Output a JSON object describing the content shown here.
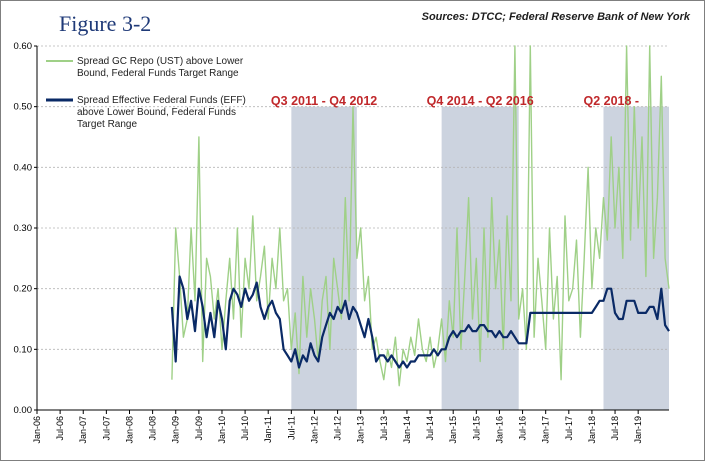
{
  "figure_title": "Figure 3-2",
  "sources": "Sources: DTCC; Federal Reserve Bank of New York",
  "colors": {
    "gc_repo": "#9fd087",
    "eff": "#0a2a66",
    "shade": "#ccd3df",
    "period_label": "#c0282b",
    "grid": "#b5b5b5"
  },
  "chart_data": {
    "type": "line",
    "title": "",
    "xlabel": "",
    "ylabel": "",
    "ylim": [
      0,
      0.6
    ],
    "yticks": [
      "0.00",
      "0.10",
      "0.20",
      "0.30",
      "0.40",
      "0.50",
      "0.60"
    ],
    "xlim": [
      "2006-01",
      "2019-09"
    ],
    "xticks": [
      "Jan-06",
      "Jul-06",
      "Jan-07",
      "Jul-07",
      "Jan-08",
      "Jul-08",
      "Jan-09",
      "Jul-09",
      "Jan-10",
      "Jul-10",
      "Jan-11",
      "Jul-11",
      "Jan-12",
      "Jul-12",
      "Jan-13",
      "Jul-13",
      "Jan-14",
      "Jul-14",
      "Jan-15",
      "Jul-15",
      "Jan-16",
      "Jul-16",
      "Jan-17",
      "Jul-17",
      "Jan-18",
      "Jul-18",
      "Jan-19"
    ],
    "grid": true,
    "legend_position": "top-left",
    "shaded_periods": [
      {
        "label": "Q3 2011 - Q4 2012",
        "start": "2011-07",
        "end": "2012-12"
      },
      {
        "label": "Q4 2014 - Q2 2016",
        "start": "2014-10",
        "end": "2016-06"
      },
      {
        "label": "Q2 2018 -",
        "start": "2018-04",
        "end": "2019-09"
      }
    ],
    "series": [
      {
        "name": "Spread GC Repo (UST) above Lower Bound, Federal Funds Target Range",
        "x": [
          "2008-12",
          "2009-01",
          "2009-02",
          "2009-03",
          "2009-04",
          "2009-05",
          "2009-06",
          "2009-07",
          "2009-08",
          "2009-09",
          "2009-10",
          "2009-11",
          "2009-12",
          "2010-01",
          "2010-02",
          "2010-03",
          "2010-04",
          "2010-05",
          "2010-06",
          "2010-07",
          "2010-08",
          "2010-09",
          "2010-10",
          "2010-11",
          "2010-12",
          "2011-01",
          "2011-02",
          "2011-03",
          "2011-04",
          "2011-05",
          "2011-06",
          "2011-07",
          "2011-08",
          "2011-09",
          "2011-10",
          "2011-11",
          "2011-12",
          "2012-01",
          "2012-02",
          "2012-03",
          "2012-04",
          "2012-05",
          "2012-06",
          "2012-07",
          "2012-08",
          "2012-09",
          "2012-10",
          "2012-11",
          "2012-12",
          "2013-01",
          "2013-02",
          "2013-03",
          "2013-04",
          "2013-05",
          "2013-06",
          "2013-07",
          "2013-08",
          "2013-09",
          "2013-10",
          "2013-11",
          "2013-12",
          "2014-01",
          "2014-02",
          "2014-03",
          "2014-04",
          "2014-05",
          "2014-06",
          "2014-07",
          "2014-08",
          "2014-09",
          "2014-10",
          "2014-11",
          "2014-12",
          "2015-01",
          "2015-02",
          "2015-03",
          "2015-04",
          "2015-05",
          "2015-06",
          "2015-07",
          "2015-08",
          "2015-09",
          "2015-10",
          "2015-11",
          "2015-12",
          "2016-01",
          "2016-02",
          "2016-03",
          "2016-04",
          "2016-05",
          "2016-06",
          "2016-07",
          "2016-08",
          "2016-09",
          "2016-10",
          "2016-11",
          "2016-12",
          "2017-01",
          "2017-02",
          "2017-03",
          "2017-04",
          "2017-05",
          "2017-06",
          "2017-07",
          "2017-08",
          "2017-09",
          "2017-10",
          "2017-11",
          "2017-12",
          "2018-01",
          "2018-02",
          "2018-03",
          "2018-04",
          "2018-05",
          "2018-06",
          "2018-07",
          "2018-08",
          "2018-09",
          "2018-10",
          "2018-11",
          "2018-12",
          "2019-01",
          "2019-02",
          "2019-03",
          "2019-04",
          "2019-05",
          "2019-06",
          "2019-07",
          "2019-08",
          "2019-09"
        ],
        "values": [
          0.05,
          0.3,
          0.22,
          0.12,
          0.15,
          0.3,
          0.18,
          0.45,
          0.08,
          0.25,
          0.22,
          0.15,
          0.2,
          0.1,
          0.18,
          0.25,
          0.15,
          0.3,
          0.12,
          0.25,
          0.2,
          0.32,
          0.18,
          0.22,
          0.27,
          0.15,
          0.25,
          0.2,
          0.3,
          0.18,
          0.2,
          0.1,
          0.16,
          0.06,
          0.22,
          0.12,
          0.2,
          0.15,
          0.08,
          0.18,
          0.22,
          0.1,
          0.25,
          0.2,
          0.15,
          0.35,
          0.18,
          0.5,
          0.25,
          0.3,
          0.18,
          0.22,
          0.1,
          0.12,
          0.08,
          0.05,
          0.1,
          0.07,
          0.12,
          0.04,
          0.1,
          0.08,
          0.12,
          0.09,
          0.15,
          0.1,
          0.08,
          0.12,
          0.07,
          0.1,
          0.15,
          0.08,
          0.18,
          0.12,
          0.3,
          0.1,
          0.22,
          0.35,
          0.15,
          0.25,
          0.08,
          0.3,
          0.12,
          0.35,
          0.2,
          0.28,
          0.1,
          0.32,
          0.18,
          0.6,
          0.15,
          0.2,
          0.1,
          0.6,
          0.12,
          0.25,
          0.18,
          0.1,
          0.3,
          0.15,
          0.22,
          0.05,
          0.32,
          0.18,
          0.2,
          0.28,
          0.12,
          0.25,
          0.4,
          0.2,
          0.3,
          0.25,
          0.35,
          0.28,
          0.45,
          0.3,
          0.4,
          0.25,
          0.6,
          0.28,
          0.5,
          0.3,
          0.45,
          0.22,
          0.6,
          0.25,
          0.35,
          0.55,
          0.25,
          0.2
        ]
      },
      {
        "name": "Spread Effective Federal Funds (EFF) above Lower Bound, Federal Funds Target Range",
        "x": [
          "2008-12",
          "2009-01",
          "2009-02",
          "2009-03",
          "2009-04",
          "2009-05",
          "2009-06",
          "2009-07",
          "2009-08",
          "2009-09",
          "2009-10",
          "2009-11",
          "2009-12",
          "2010-01",
          "2010-02",
          "2010-03",
          "2010-04",
          "2010-05",
          "2010-06",
          "2010-07",
          "2010-08",
          "2010-09",
          "2010-10",
          "2010-11",
          "2010-12",
          "2011-01",
          "2011-02",
          "2011-03",
          "2011-04",
          "2011-05",
          "2011-06",
          "2011-07",
          "2011-08",
          "2011-09",
          "2011-10",
          "2011-11",
          "2011-12",
          "2012-01",
          "2012-02",
          "2012-03",
          "2012-04",
          "2012-05",
          "2012-06",
          "2012-07",
          "2012-08",
          "2012-09",
          "2012-10",
          "2012-11",
          "2012-12",
          "2013-01",
          "2013-02",
          "2013-03",
          "2013-04",
          "2013-05",
          "2013-06",
          "2013-07",
          "2013-08",
          "2013-09",
          "2013-10",
          "2013-11",
          "2013-12",
          "2014-01",
          "2014-02",
          "2014-03",
          "2014-04",
          "2014-05",
          "2014-06",
          "2014-07",
          "2014-08",
          "2014-09",
          "2014-10",
          "2014-11",
          "2014-12",
          "2015-01",
          "2015-02",
          "2015-03",
          "2015-04",
          "2015-05",
          "2015-06",
          "2015-07",
          "2015-08",
          "2015-09",
          "2015-10",
          "2015-11",
          "2015-12",
          "2016-01",
          "2016-02",
          "2016-03",
          "2016-04",
          "2016-05",
          "2016-06",
          "2016-07",
          "2016-08",
          "2016-09",
          "2016-10",
          "2016-11",
          "2016-12",
          "2017-01",
          "2017-02",
          "2017-03",
          "2017-04",
          "2017-05",
          "2017-06",
          "2017-07",
          "2017-08",
          "2017-09",
          "2017-10",
          "2017-11",
          "2017-12",
          "2018-01",
          "2018-02",
          "2018-03",
          "2018-04",
          "2018-05",
          "2018-06",
          "2018-07",
          "2018-08",
          "2018-09",
          "2018-10",
          "2018-11",
          "2018-12",
          "2019-01",
          "2019-02",
          "2019-03",
          "2019-04",
          "2019-05",
          "2019-06",
          "2019-07",
          "2019-08",
          "2019-09"
        ],
        "values": [
          0.17,
          0.08,
          0.22,
          0.2,
          0.15,
          0.18,
          0.13,
          0.2,
          0.17,
          0.12,
          0.16,
          0.12,
          0.18,
          0.15,
          0.1,
          0.18,
          0.2,
          0.19,
          0.17,
          0.2,
          0.18,
          0.19,
          0.21,
          0.17,
          0.15,
          0.17,
          0.18,
          0.16,
          0.15,
          0.1,
          0.09,
          0.08,
          0.1,
          0.07,
          0.09,
          0.08,
          0.11,
          0.09,
          0.08,
          0.12,
          0.14,
          0.16,
          0.15,
          0.17,
          0.16,
          0.18,
          0.15,
          0.17,
          0.16,
          0.14,
          0.12,
          0.15,
          0.12,
          0.08,
          0.09,
          0.09,
          0.08,
          0.09,
          0.08,
          0.07,
          0.08,
          0.07,
          0.08,
          0.08,
          0.09,
          0.09,
          0.09,
          0.09,
          0.1,
          0.09,
          0.1,
          0.1,
          0.12,
          0.13,
          0.12,
          0.13,
          0.13,
          0.14,
          0.13,
          0.13,
          0.14,
          0.14,
          0.13,
          0.13,
          0.12,
          0.13,
          0.12,
          0.12,
          0.13,
          0.12,
          0.11,
          0.11,
          0.11,
          0.16,
          0.16,
          0.16,
          0.16,
          0.16,
          0.16,
          0.16,
          0.16,
          0.16,
          0.16,
          0.16,
          0.16,
          0.16,
          0.16,
          0.16,
          0.16,
          0.16,
          0.17,
          0.18,
          0.18,
          0.2,
          0.2,
          0.16,
          0.15,
          0.15,
          0.18,
          0.18,
          0.18,
          0.16,
          0.16,
          0.16,
          0.17,
          0.17,
          0.15,
          0.2,
          0.14,
          0.13
        ]
      }
    ]
  }
}
